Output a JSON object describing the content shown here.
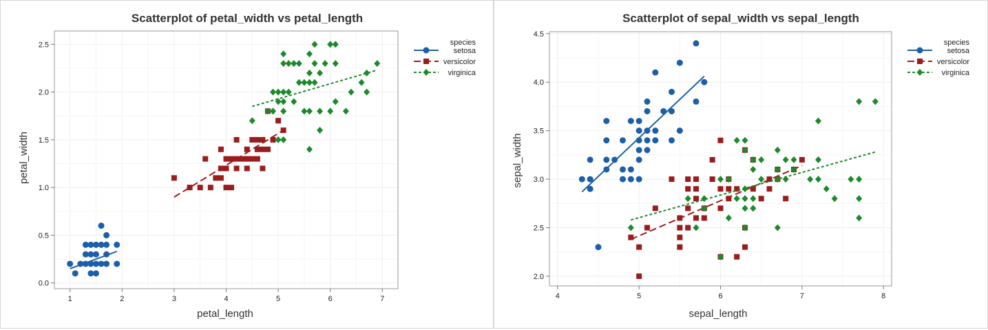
{
  "species_legend_title": "species",
  "species": [
    {
      "name": "setosa",
      "color": "#1c5fa8",
      "marker": "circle",
      "dash": ""
    },
    {
      "name": "versicolor",
      "color": "#9b1c1c",
      "marker": "square",
      "dash": "10,5"
    },
    {
      "name": "virginica",
      "color": "#1a8a2a",
      "marker": "diamond",
      "dash": "4,3"
    }
  ],
  "chart_data": [
    {
      "type": "scatter",
      "title": "Scatterplot of petal_width vs petal_length",
      "xlabel": "petal_length",
      "ylabel": "petal_width",
      "xlim": [
        0.7,
        7.3
      ],
      "ylim": [
        -0.06,
        2.64
      ],
      "xticks": [
        1,
        2,
        3,
        4,
        5,
        6,
        7
      ],
      "yticks": [
        0.0,
        0.5,
        1.0,
        1.5,
        2.0,
        2.5
      ],
      "ytick_labels": [
        "0.0",
        "0.5",
        "1.0",
        "1.5",
        "2.0",
        "2.5"
      ],
      "grid": true,
      "legend_position": "top-right",
      "series": [
        {
          "name": "setosa",
          "points": [
            [
              1.0,
              0.2
            ],
            [
              1.1,
              0.1
            ],
            [
              1.2,
              0.2
            ],
            [
              1.3,
              0.2
            ],
            [
              1.3,
              0.3
            ],
            [
              1.3,
              0.4
            ],
            [
              1.4,
              0.1
            ],
            [
              1.4,
              0.2
            ],
            [
              1.4,
              0.3
            ],
            [
              1.4,
              0.4
            ],
            [
              1.5,
              0.1
            ],
            [
              1.5,
              0.2
            ],
            [
              1.5,
              0.3
            ],
            [
              1.5,
              0.4
            ],
            [
              1.6,
              0.2
            ],
            [
              1.6,
              0.4
            ],
            [
              1.6,
              0.6
            ],
            [
              1.7,
              0.2
            ],
            [
              1.7,
              0.3
            ],
            [
              1.7,
              0.4
            ],
            [
              1.7,
              0.5
            ],
            [
              1.9,
              0.2
            ],
            [
              1.9,
              0.4
            ]
          ],
          "fit": [
            [
              1.0,
              0.15
            ],
            [
              1.9,
              0.33
            ]
          ]
        },
        {
          "name": "versicolor",
          "points": [
            [
              3.0,
              1.1
            ],
            [
              3.3,
              1.0
            ],
            [
              3.5,
              1.0
            ],
            [
              3.6,
              1.3
            ],
            [
              3.7,
              1.0
            ],
            [
              3.8,
              1.1
            ],
            [
              3.9,
              1.1
            ],
            [
              3.9,
              1.2
            ],
            [
              3.9,
              1.4
            ],
            [
              4.0,
              1.0
            ],
            [
              4.0,
              1.2
            ],
            [
              4.0,
              1.3
            ],
            [
              4.1,
              1.0
            ],
            [
              4.1,
              1.3
            ],
            [
              4.2,
              1.2
            ],
            [
              4.2,
              1.3
            ],
            [
              4.2,
              1.5
            ],
            [
              4.3,
              1.3
            ],
            [
              4.4,
              1.2
            ],
            [
              4.4,
              1.3
            ],
            [
              4.4,
              1.4
            ],
            [
              4.5,
              1.3
            ],
            [
              4.5,
              1.5
            ],
            [
              4.6,
              1.3
            ],
            [
              4.6,
              1.4
            ],
            [
              4.6,
              1.5
            ],
            [
              4.7,
              1.2
            ],
            [
              4.7,
              1.4
            ],
            [
              4.7,
              1.5
            ],
            [
              4.8,
              1.4
            ],
            [
              4.8,
              1.8
            ],
            [
              4.9,
              1.5
            ],
            [
              5.0,
              1.7
            ],
            [
              5.1,
              1.6
            ]
          ],
          "fit": [
            [
              3.0,
              0.9
            ],
            [
              5.1,
              1.6
            ]
          ]
        },
        {
          "name": "virginica",
          "points": [
            [
              4.5,
              1.7
            ],
            [
              4.8,
              1.8
            ],
            [
              4.9,
              1.8
            ],
            [
              4.9,
              2.0
            ],
            [
              5.0,
              1.5
            ],
            [
              5.0,
              1.9
            ],
            [
              5.0,
              2.0
            ],
            [
              5.1,
              1.5
            ],
            [
              5.1,
              1.8
            ],
            [
              5.1,
              1.9
            ],
            [
              5.1,
              2.0
            ],
            [
              5.1,
              2.3
            ],
            [
              5.1,
              2.4
            ],
            [
              5.2,
              2.0
            ],
            [
              5.2,
              2.3
            ],
            [
              5.3,
              1.9
            ],
            [
              5.3,
              2.3
            ],
            [
              5.4,
              2.1
            ],
            [
              5.4,
              2.3
            ],
            [
              5.5,
              1.8
            ],
            [
              5.5,
              2.1
            ],
            [
              5.6,
              1.4
            ],
            [
              5.6,
              1.8
            ],
            [
              5.6,
              2.1
            ],
            [
              5.6,
              2.2
            ],
            [
              5.6,
              2.4
            ],
            [
              5.7,
              2.1
            ],
            [
              5.7,
              2.3
            ],
            [
              5.7,
              2.5
            ],
            [
              5.8,
              1.6
            ],
            [
              5.8,
              1.8
            ],
            [
              5.8,
              2.2
            ],
            [
              5.9,
              2.3
            ],
            [
              6.0,
              1.8
            ],
            [
              6.0,
              2.5
            ],
            [
              6.1,
              1.9
            ],
            [
              6.1,
              2.3
            ],
            [
              6.1,
              2.5
            ],
            [
              6.3,
              1.8
            ],
            [
              6.4,
              2.0
            ],
            [
              6.6,
              2.1
            ],
            [
              6.7,
              2.0
            ],
            [
              6.7,
              2.2
            ],
            [
              6.9,
              2.3
            ]
          ],
          "fit": [
            [
              4.5,
              1.85
            ],
            [
              6.9,
              2.23
            ]
          ]
        }
      ]
    },
    {
      "type": "scatter",
      "title": "Scatterplot of sepal_width vs sepal_length",
      "xlabel": "sepal_length",
      "ylabel": "sepal_width",
      "xlim": [
        3.9,
        8.1
      ],
      "ylim": [
        1.9,
        4.52
      ],
      "xticks": [
        4,
        5,
        6,
        7,
        8
      ],
      "yticks": [
        2.0,
        2.5,
        3.0,
        3.5,
        4.0,
        4.5
      ],
      "ytick_labels": [
        "2.0",
        "2.5",
        "3.0",
        "3.5",
        "4.0",
        "4.5"
      ],
      "grid": true,
      "legend_position": "top-right",
      "series": [
        {
          "name": "setosa",
          "points": [
            [
              4.3,
              3.0
            ],
            [
              4.4,
              2.9
            ],
            [
              4.4,
              3.0
            ],
            [
              4.4,
              3.2
            ],
            [
              4.5,
              2.3
            ],
            [
              4.6,
              3.1
            ],
            [
              4.6,
              3.2
            ],
            [
              4.6,
              3.4
            ],
            [
              4.6,
              3.6
            ],
            [
              4.7,
              3.2
            ],
            [
              4.8,
              3.0
            ],
            [
              4.8,
              3.1
            ],
            [
              4.8,
              3.4
            ],
            [
              4.9,
              3.0
            ],
            [
              4.9,
              3.1
            ],
            [
              4.9,
              3.6
            ],
            [
              5.0,
              3.0
            ],
            [
              5.0,
              3.2
            ],
            [
              5.0,
              3.3
            ],
            [
              5.0,
              3.4
            ],
            [
              5.0,
              3.5
            ],
            [
              5.0,
              3.6
            ],
            [
              5.1,
              3.3
            ],
            [
              5.1,
              3.4
            ],
            [
              5.1,
              3.5
            ],
            [
              5.1,
              3.7
            ],
            [
              5.1,
              3.8
            ],
            [
              5.2,
              3.4
            ],
            [
              5.2,
              3.5
            ],
            [
              5.2,
              4.1
            ],
            [
              5.3,
              3.7
            ],
            [
              5.4,
              3.4
            ],
            [
              5.4,
              3.7
            ],
            [
              5.4,
              3.9
            ],
            [
              5.5,
              3.5
            ],
            [
              5.5,
              4.2
            ],
            [
              5.7,
              3.8
            ],
            [
              5.7,
              4.4
            ],
            [
              5.8,
              4.0
            ]
          ],
          "fit": [
            [
              4.3,
              2.87
            ],
            [
              5.8,
              4.06
            ]
          ]
        },
        {
          "name": "versicolor",
          "points": [
            [
              4.9,
              2.4
            ],
            [
              5.0,
              2.0
            ],
            [
              5.0,
              2.3
            ],
            [
              5.1,
              2.5
            ],
            [
              5.2,
              2.7
            ],
            [
              5.4,
              3.0
            ],
            [
              5.5,
              2.3
            ],
            [
              5.5,
              2.4
            ],
            [
              5.5,
              2.5
            ],
            [
              5.5,
              2.6
            ],
            [
              5.6,
              2.5
            ],
            [
              5.6,
              2.7
            ],
            [
              5.6,
              2.9
            ],
            [
              5.6,
              3.0
            ],
            [
              5.7,
              2.6
            ],
            [
              5.7,
              2.8
            ],
            [
              5.7,
              2.9
            ],
            [
              5.7,
              3.0
            ],
            [
              5.8,
              2.6
            ],
            [
              5.8,
              2.7
            ],
            [
              5.9,
              3.0
            ],
            [
              5.9,
              3.2
            ],
            [
              6.0,
              2.2
            ],
            [
              6.0,
              2.7
            ],
            [
              6.0,
              2.9
            ],
            [
              6.0,
              3.4
            ],
            [
              6.1,
              2.8
            ],
            [
              6.1,
              2.9
            ],
            [
              6.1,
              3.0
            ],
            [
              6.2,
              2.2
            ],
            [
              6.2,
              2.9
            ],
            [
              6.3,
              2.3
            ],
            [
              6.3,
              2.5
            ],
            [
              6.3,
              3.3
            ],
            [
              6.4,
              2.9
            ],
            [
              6.4,
              3.2
            ],
            [
              6.5,
              2.8
            ],
            [
              6.6,
              2.9
            ],
            [
              6.6,
              3.0
            ],
            [
              6.7,
              3.0
            ],
            [
              6.7,
              3.1
            ],
            [
              6.8,
              2.8
            ],
            [
              6.9,
              3.1
            ],
            [
              7.0,
              3.2
            ]
          ],
          "fit": [
            [
              4.9,
              2.38
            ],
            [
              7.0,
              3.14
            ]
          ]
        },
        {
          "name": "virginica",
          "points": [
            [
              4.9,
              2.5
            ],
            [
              5.6,
              2.8
            ],
            [
              5.7,
              2.5
            ],
            [
              5.8,
              2.7
            ],
            [
              5.8,
              2.8
            ],
            [
              6.0,
              2.2
            ],
            [
              6.0,
              3.0
            ],
            [
              6.1,
              2.6
            ],
            [
              6.1,
              3.0
            ],
            [
              6.2,
              2.8
            ],
            [
              6.2,
              3.4
            ],
            [
              6.3,
              2.5
            ],
            [
              6.3,
              2.7
            ],
            [
              6.3,
              2.8
            ],
            [
              6.3,
              2.9
            ],
            [
              6.3,
              3.3
            ],
            [
              6.3,
              3.4
            ],
            [
              6.4,
              2.7
            ],
            [
              6.4,
              2.8
            ],
            [
              6.4,
              3.1
            ],
            [
              6.4,
              3.2
            ],
            [
              6.5,
              3.0
            ],
            [
              6.5,
              3.2
            ],
            [
              6.7,
              2.5
            ],
            [
              6.7,
              3.0
            ],
            [
              6.7,
              3.1
            ],
            [
              6.7,
              3.3
            ],
            [
              6.8,
              3.0
            ],
            [
              6.8,
              3.2
            ],
            [
              6.9,
              3.1
            ],
            [
              6.9,
              3.2
            ],
            [
              7.1,
              3.0
            ],
            [
              7.2,
              3.0
            ],
            [
              7.2,
              3.2
            ],
            [
              7.2,
              3.6
            ],
            [
              7.3,
              2.9
            ],
            [
              7.4,
              2.8
            ],
            [
              7.6,
              3.0
            ],
            [
              7.7,
              2.6
            ],
            [
              7.7,
              2.8
            ],
            [
              7.7,
              3.0
            ],
            [
              7.7,
              3.8
            ],
            [
              7.9,
              3.8
            ]
          ],
          "fit": [
            [
              4.9,
              2.58
            ],
            [
              7.9,
              3.28
            ]
          ]
        }
      ]
    }
  ]
}
